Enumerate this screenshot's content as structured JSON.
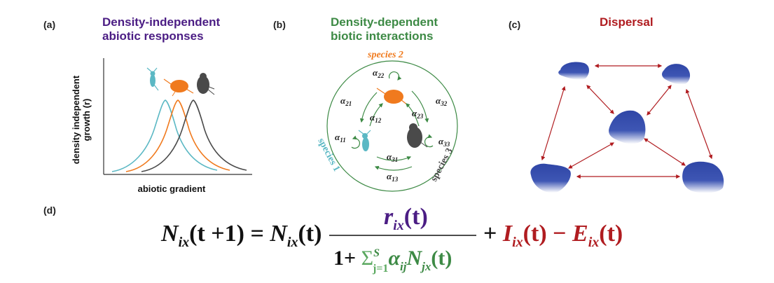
{
  "colors": {
    "purple": "#4b1d84",
    "green": "#3d8a45",
    "red": "#b01c20",
    "orange": "#f07a1e",
    "teal": "#5bb8c4",
    "dark": "#4a4a4a",
    "blue_blob": "#2f46a6",
    "black": "#111111"
  },
  "panel_a": {
    "label": "(a)",
    "title_line1": "Density-independent",
    "title_line2": "abiotic responses",
    "ylabel_line1": "density independent",
    "ylabel_line2": "growth (r)",
    "xlabel": "abiotic gradient",
    "icons": [
      "daphnia-icon",
      "copepod-icon",
      "rotifer-icon"
    ]
  },
  "panel_b": {
    "label": "(b)",
    "title_line1": "Density-dependent",
    "title_line2": "biotic interactions",
    "species2": "species 2",
    "species1": "species 1",
    "species3": "species 3",
    "coefficients": {
      "a22": "22",
      "a21": "21",
      "a12": "12",
      "a23": "23",
      "a32": "32",
      "a11": "11",
      "a33": "33",
      "a31": "31",
      "a13": "13"
    },
    "alpha_symbol": "α"
  },
  "panel_c": {
    "label": "(c)",
    "title": "Dispersal"
  },
  "panel_d": {
    "label": "(d)",
    "equation": {
      "N": "N",
      "ix": "ix",
      "t_plus_1": "(t +1) = ",
      "t_open": "(t) ",
      "r": "r",
      "t": "(t)",
      "one_plus": "1+ ",
      "sigma": "Σ",
      "sum_upper": "S",
      "sum_lower": "j=1",
      "alpha": "α",
      "ij": "ij",
      "jx": "jx",
      "plus": "+ ",
      "I": "I",
      "minus": " − ",
      "E": "E"
    }
  }
}
